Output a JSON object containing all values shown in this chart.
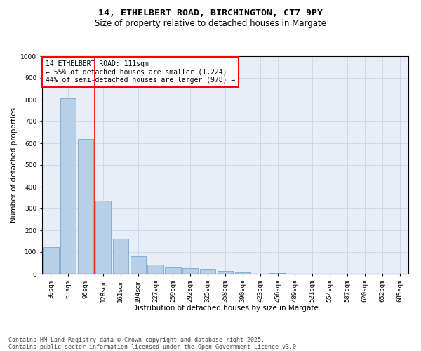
{
  "title_line1": "14, ETHELBERT ROAD, BIRCHINGTON, CT7 9PY",
  "title_line2": "Size of property relative to detached houses in Margate",
  "xlabel": "Distribution of detached houses by size in Margate",
  "ylabel": "Number of detached properties",
  "bar_labels": [
    "30sqm",
    "63sqm",
    "96sqm",
    "128sqm",
    "161sqm",
    "194sqm",
    "227sqm",
    "259sqm",
    "292sqm",
    "325sqm",
    "358sqm",
    "390sqm",
    "423sqm",
    "456sqm",
    "489sqm",
    "521sqm",
    "554sqm",
    "587sqm",
    "620sqm",
    "652sqm",
    "685sqm"
  ],
  "bar_values": [
    122,
    805,
    618,
    335,
    162,
    82,
    42,
    28,
    25,
    22,
    14,
    5,
    0,
    2,
    0,
    0,
    0,
    0,
    0,
    0,
    0
  ],
  "bar_color": "#b8cfe8",
  "bar_edge_color": "#6a9cc8",
  "vline_color": "red",
  "vline_position": 2.5,
  "annotation_text": "14 ETHELBERT ROAD: 111sqm\n← 55% of detached houses are smaller (1,224)\n44% of semi-detached houses are larger (978) →",
  "annotation_box_edgecolor": "red",
  "ylim": [
    0,
    1000
  ],
  "yticks": [
    0,
    100,
    200,
    300,
    400,
    500,
    600,
    700,
    800,
    900,
    1000
  ],
  "grid_color": "#c8d4e8",
  "background_color": "#e8eef8",
  "footer_line1": "Contains HM Land Registry data © Crown copyright and database right 2025.",
  "footer_line2": "Contains public sector information licensed under the Open Government Licence v3.0.",
  "title_fontsize": 9.5,
  "subtitle_fontsize": 8.5,
  "axis_label_fontsize": 7.5,
  "tick_fontsize": 6.5,
  "annotation_fontsize": 7,
  "footer_fontsize": 6
}
